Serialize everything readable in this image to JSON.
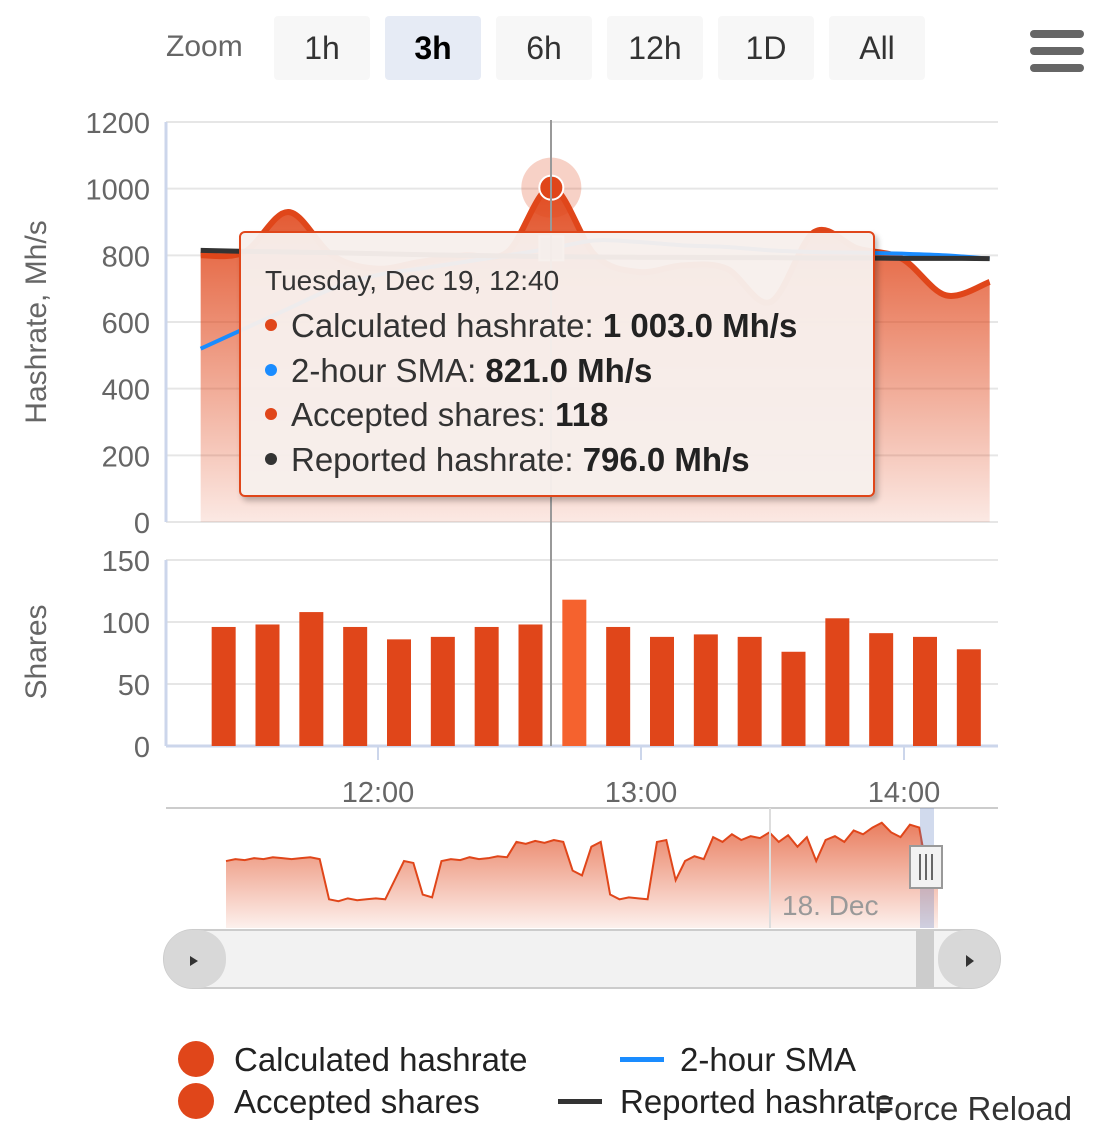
{
  "zoom": {
    "label": "Zoom",
    "buttons": [
      "1h",
      "3h",
      "6h",
      "12h",
      "1D",
      "All"
    ],
    "selected": "3h"
  },
  "menu": {
    "icon": "hamburger-menu-icon"
  },
  "colors": {
    "calculated": "#e0461a",
    "sma": "#1a8cff",
    "reported": "#333333",
    "shares": "#e0461a",
    "shares_highlight": "#f5622e",
    "grid": "#e6e6e6"
  },
  "chart_data": [
    {
      "type": "area",
      "ylabel": "Hashrate, Mh/s",
      "ylim": [
        0,
        1200
      ],
      "yticks": [
        "0",
        "200",
        "400",
        "600",
        "800",
        "1000",
        "1200"
      ],
      "series": [
        {
          "name": "Calculated hashrate",
          "type": "area",
          "x": [
            "11:20",
            "11:30",
            "11:40",
            "11:50",
            "12:00",
            "12:10",
            "12:20",
            "12:30",
            "12:40",
            "12:50",
            "13:00",
            "13:10",
            "13:20",
            "13:30",
            "13:40",
            "13:50",
            "14:00",
            "14:10",
            "14:20"
          ],
          "values": [
            800,
            810,
            930,
            800,
            760,
            780,
            800,
            810,
            1003,
            800,
            750,
            770,
            760,
            660,
            870,
            820,
            790,
            680,
            720
          ]
        },
        {
          "name": "2-hour SMA",
          "type": "line",
          "x": [
            "11:20",
            "11:30",
            "11:40",
            "11:50",
            "12:00",
            "12:10",
            "12:20",
            "12:30",
            "12:40",
            "12:50",
            "13:00",
            "13:10",
            "13:20",
            "13:30",
            "13:40",
            "13:50",
            "14:00",
            "14:10",
            "14:20"
          ],
          "values": [
            520,
            580,
            640,
            700,
            740,
            760,
            780,
            800,
            821,
            845,
            840,
            830,
            825,
            815,
            810,
            808,
            805,
            800,
            790
          ]
        },
        {
          "name": "Reported hashrate",
          "type": "line",
          "x": [
            "11:20",
            "11:30",
            "11:40",
            "11:50",
            "12:00",
            "12:10",
            "12:20",
            "12:30",
            "12:40",
            "12:50",
            "13:00",
            "13:10",
            "13:20",
            "13:30",
            "13:40",
            "13:50",
            "14:00",
            "14:10",
            "14:20"
          ],
          "values": [
            815,
            812,
            810,
            808,
            805,
            802,
            800,
            798,
            796,
            795,
            794,
            794,
            793,
            793,
            792,
            792,
            791,
            791,
            790
          ]
        }
      ],
      "highlight": {
        "x": "12:40",
        "value": 1003
      }
    },
    {
      "type": "bar",
      "ylabel": "Shares",
      "ylim": [
        0,
        150
      ],
      "yticks": [
        "0",
        "50",
        "100",
        "150"
      ],
      "series": [
        {
          "name": "Accepted shares",
          "x": [
            "11:20",
            "11:30",
            "11:40",
            "11:50",
            "12:00",
            "12:10",
            "12:20",
            "12:30",
            "12:40",
            "12:50",
            "13:00",
            "13:10",
            "13:20",
            "13:30",
            "13:40",
            "13:50",
            "14:00",
            "14:10"
          ],
          "values": [
            96,
            98,
            108,
            96,
            86,
            88,
            96,
            98,
            118,
            96,
            88,
            90,
            88,
            76,
            103,
            91,
            88,
            78
          ]
        }
      ],
      "highlight": {
        "x": "12:40",
        "value": 118
      },
      "xticks": [
        "12:00",
        "13:00",
        "14:00"
      ]
    },
    {
      "type": "area",
      "role": "navigator",
      "label": "18. Dec",
      "values": [
        0.7,
        0.72,
        0.71,
        0.73,
        0.72,
        0.74,
        0.73,
        0.72,
        0.73,
        0.74,
        0.72,
        0.3,
        0.28,
        0.31,
        0.29,
        0.3,
        0.31,
        0.3,
        0.5,
        0.7,
        0.68,
        0.35,
        0.32,
        0.7,
        0.72,
        0.71,
        0.74,
        0.72,
        0.73,
        0.75,
        0.74,
        0.9,
        0.88,
        0.91,
        0.89,
        0.92,
        0.9,
        0.6,
        0.55,
        0.85,
        0.9,
        0.35,
        0.3,
        0.32,
        0.31,
        0.3,
        0.9,
        0.92,
        0.5,
        0.7,
        0.75,
        0.72,
        0.95,
        0.9,
        0.98,
        0.92,
        0.96,
        0.94,
        1.0,
        0.9,
        0.97,
        0.85,
        0.95,
        0.7,
        0.92,
        0.96,
        0.9,
        1.02,
        0.98,
        1.05,
        1.1,
        1.0,
        0.95,
        1.08,
        1.05,
        0.5,
        0.45
      ]
    }
  ],
  "xaxis": {
    "ticks": [
      "12:00",
      "13:00",
      "14:00"
    ]
  },
  "tooltip": {
    "date": "Tuesday, Dec 19, 12:40",
    "rows": [
      {
        "label": "Calculated hashrate: ",
        "value": "1 003.0 Mh/s",
        "color": "#e0461a"
      },
      {
        "label": "2-hour SMA: ",
        "value": "821.0 Mh/s",
        "color": "#1a8cff"
      },
      {
        "label": "Accepted shares: ",
        "value": "118",
        "color": "#e0461a"
      },
      {
        "label": "Reported hashrate: ",
        "value": "796.0 Mh/s",
        "color": "#333333"
      }
    ]
  },
  "legend": {
    "calculated": "Calculated hashrate",
    "sma": "2-hour SMA",
    "shares": "Accepted shares",
    "reported": "Reported hashrate"
  },
  "footer": {
    "force_reload": "Force Reload"
  }
}
